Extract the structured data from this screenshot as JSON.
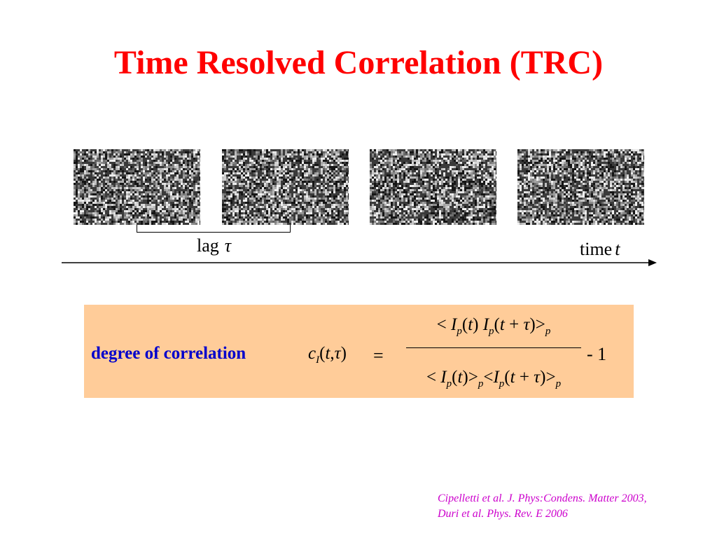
{
  "title": "Time Resolved Correlation (TRC)",
  "frames": [
    {
      "name": "speckle-frame-1"
    },
    {
      "name": "speckle-frame-2"
    },
    {
      "name": "speckle-frame-3"
    },
    {
      "name": "speckle-frame-4"
    }
  ],
  "lag": {
    "word": "lag",
    "symbol": "τ"
  },
  "time_axis": {
    "word": "time",
    "symbol": "t"
  },
  "formula": {
    "label": "degree of correlation",
    "lhs": {
      "c": "c",
      "sub": "I",
      "args_open": "(",
      "t": "t",
      "comma": ",",
      "tau": "τ",
      "args_close": ")"
    },
    "equals": "=",
    "numerator": "< I_p(t) I_p(t + τ)>_p",
    "denominator": "< I_p(t)>_p<I_p(t + τ)>_p",
    "tail": "- 1"
  },
  "citations": [
    "Cipelletti et al. J. Phys:Condens. Matter 2003,",
    "Duri et al. Phys. Rev. E 2006"
  ],
  "colors": {
    "title": "#ff0000",
    "formula_background": "#ffcc99",
    "formula_label": "#0000cc",
    "citation": "#cc00cc"
  }
}
